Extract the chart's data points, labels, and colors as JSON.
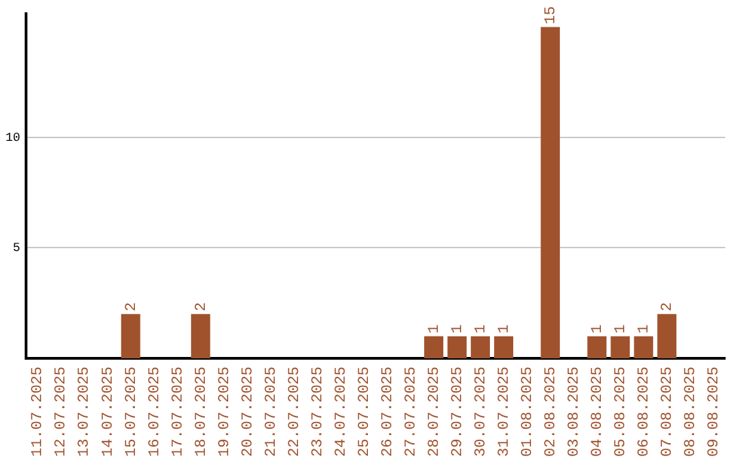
{
  "chart_data": {
    "type": "bar",
    "categories": [
      "11.07.2025",
      "12.07.2025",
      "13.07.2025",
      "14.07.2025",
      "15.07.2025",
      "16.07.2025",
      "17.07.2025",
      "18.07.2025",
      "19.07.2025",
      "20.07.2025",
      "21.07.2025",
      "22.07.2025",
      "23.07.2025",
      "24.07.2025",
      "25.07.2025",
      "26.07.2025",
      "27.07.2025",
      "28.07.2025",
      "29.07.2025",
      "30.07.2025",
      "31.07.2025",
      "01.08.2025",
      "02.08.2025",
      "03.08.2025",
      "04.08.2025",
      "05.08.2025",
      "06.08.2025",
      "07.08.2025",
      "08.08.2025",
      "09.08.2025"
    ],
    "values": [
      0,
      0,
      0,
      0,
      2,
      0,
      0,
      2,
      0,
      0,
      0,
      0,
      0,
      0,
      0,
      0,
      0,
      1,
      1,
      1,
      1,
      0,
      15,
      0,
      1,
      1,
      1,
      2,
      0,
      0
    ],
    "value_labels": [
      null,
      null,
      null,
      null,
      "2",
      null,
      null,
      "2",
      null,
      null,
      null,
      null,
      null,
      null,
      null,
      null,
      null,
      "1",
      "1",
      "1",
      "1",
      null,
      "15",
      null,
      "1",
      "1",
      "1",
      "2",
      null,
      null
    ],
    "color": "#a0522d",
    "ylim": [
      0,
      15.6
    ],
    "yticks": [
      5,
      10
    ],
    "grid": "y",
    "legend": false
  }
}
